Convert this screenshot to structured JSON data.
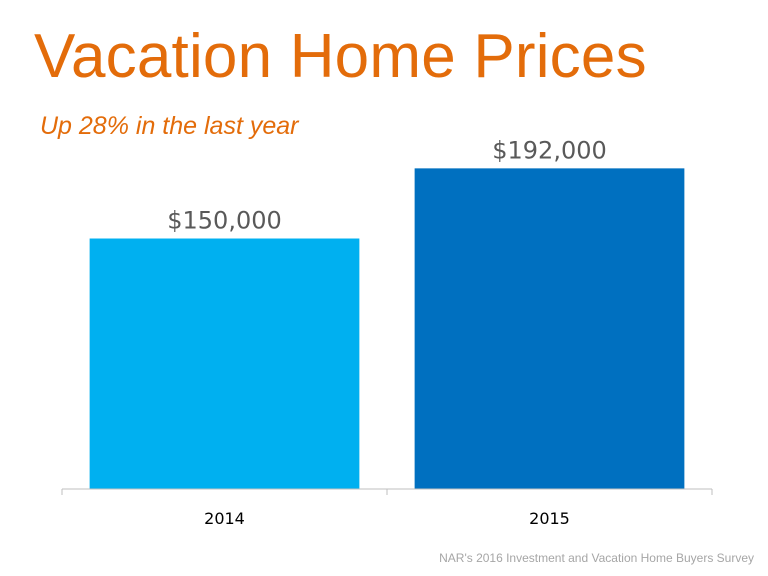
{
  "title": "Vacation Home Prices",
  "subtitle": "Up 28% in the last year",
  "source": "NAR's 2016 Investment and Vacation Home Buyers Survey",
  "chart_data": {
    "type": "bar",
    "categories": [
      "2014",
      "2015"
    ],
    "values": [
      150000,
      192000
    ],
    "data_labels": [
      "$150,000",
      "$192,000"
    ],
    "colors": [
      "#00B0F0",
      "#0070C0"
    ],
    "title": "",
    "xlabel": "",
    "ylabel": "",
    "ylim": [
      0,
      200000
    ],
    "grid": false,
    "legend": "none"
  }
}
